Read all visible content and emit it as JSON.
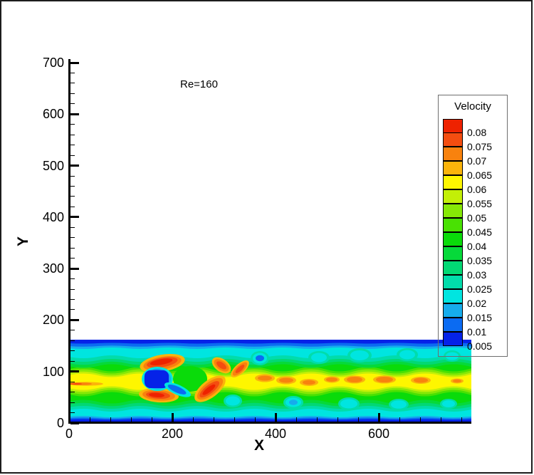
{
  "figure": {
    "annotation": "Re=160",
    "background": "#ffffff",
    "frame_color": "#1c1c1c"
  },
  "axes": {
    "x": {
      "title": "X",
      "min": 0,
      "max": 760,
      "major_step": 200,
      "minor_step": 40,
      "major_labels": [
        "0",
        "200",
        "400",
        "600"
      ]
    },
    "y": {
      "title": "Y",
      "min": 0,
      "max": 700,
      "major_step": 100,
      "minor_step": 20,
      "major_labels": [
        "0",
        "100",
        "200",
        "300",
        "400",
        "500",
        "600",
        "700"
      ]
    }
  },
  "legend": {
    "title": "Velocity",
    "labels": [
      "0.08",
      "0.075",
      "0.07",
      "0.065",
      "0.06",
      "0.055",
      "0.05",
      "0.045",
      "0.04",
      "0.035",
      "0.03",
      "0.025",
      "0.02",
      "0.015",
      "0.01",
      "0.005"
    ]
  },
  "chart_data": {
    "type": "heatmap",
    "subtype": "filled-contour",
    "title": "Re=160",
    "xlabel": "X",
    "ylabel": "Y",
    "x_range": [
      0,
      780
    ],
    "y_range": [
      0,
      700
    ],
    "field_extent": {
      "x": [
        0,
        780
      ],
      "y": [
        0,
        160
      ]
    },
    "grid": false,
    "legend_position": "right",
    "colorbar_title": "Velocity",
    "levels": [
      0.005,
      0.01,
      0.015,
      0.02,
      0.025,
      0.03,
      0.035,
      0.04,
      0.045,
      0.05,
      0.055,
      0.06,
      0.065,
      0.07,
      0.075,
      0.08
    ],
    "palette": [
      "#0522E8",
      "#0B6BF2",
      "#16ACEC",
      "#00E5E0",
      "#01DCAB",
      "#02D874",
      "#06D93A",
      "#0ADB0A",
      "#49E103",
      "#86E806",
      "#C3EF07",
      "#FEF600",
      "#FBB40B",
      "#F8820E",
      "#F44D10",
      "#EE2200"
    ],
    "features": [
      "2D channel-flow velocity-magnitude contour field occupying 0<=X<=780, 0<=Y<=160 of the axes",
      "No-slip walls: dark blue slow layers (~0.005-0.01) along Y=0 and Y=160",
      "Yellow high-speed core (~0.06-0.065) along the centerline Y~80 with a thin red/orange inlet streak at X~0-60",
      "Square cylinder obstacle near X~150-190, Y~70-95 shown as a dark blue stagnant blob with cyan fringe",
      "Speed maxima (red/orange, ~0.075-0.08) wrap the cylinder shoulders and shed as curved crescents",
      "Von Karman vortex street downstream: alternating cyan/blue vortex cores above and below a wavy yellow core dotted with orange lenses (~0.065-0.07)"
    ]
  }
}
